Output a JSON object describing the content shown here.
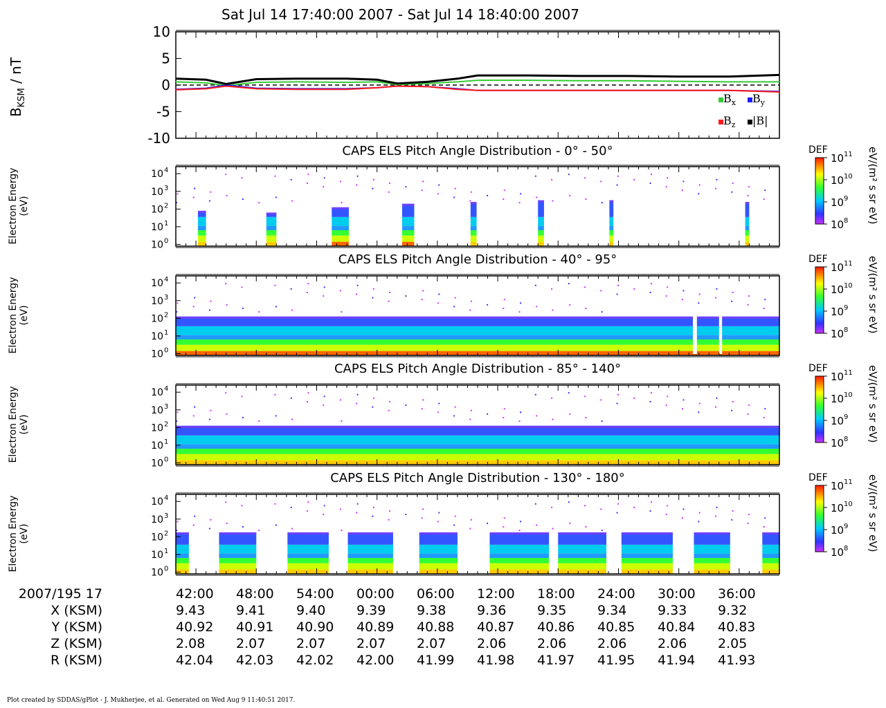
{
  "header": {
    "title": "Sat Jul 14 17:40:00 2007 - Sat Jul 14 18:40:00 2007"
  },
  "mag_panel": {
    "ylabel_main": "B",
    "ylabel_sub": "KSM",
    "ylabel_unit": " / nT",
    "legend": [
      "Bx",
      "By",
      "Bz",
      "|B|"
    ]
  },
  "spec_panels": [
    {
      "title": "CAPS ELS Pitch Angle Distribution - 0° - 50°",
      "ylabel1": "Electron Energy",
      "ylabel2": "(eV)",
      "cbar_title": "DEF",
      "cbar_unit": "eV/(m² s sr eV)"
    },
    {
      "title": "CAPS ELS Pitch Angle Distribution - 40° - 95°",
      "ylabel1": "Electron Energy",
      "ylabel2": "(eV)",
      "cbar_title": "DEF",
      "cbar_unit": "eV/(m² s sr eV)"
    },
    {
      "title": "CAPS ELS Pitch Angle Distribution - 85° - 140°",
      "ylabel1": "Electron Energy",
      "ylabel2": "(eV)",
      "cbar_title": "DEF",
      "cbar_unit": "eV/(m² s sr eV)"
    },
    {
      "title": "CAPS ELS Pitch Angle Distribution - 130° - 180°",
      "ylabel1": "Electron Energy",
      "ylabel2": "(eV)",
      "cbar_title": "DEF",
      "cbar_unit": "eV/(m² s sr eV)"
    }
  ],
  "ephemeris": {
    "rows": [
      {
        "label": "2007/195 17",
        "values": [
          "42:00",
          "48:00",
          "54:00",
          "00:00",
          "06:00",
          "12:00",
          "18:00",
          "24:00",
          "30:00",
          "36:00"
        ]
      },
      {
        "label": "X (KSM)",
        "values": [
          "9.43",
          "9.41",
          "9.40",
          "9.39",
          "9.38",
          "9.36",
          "9.35",
          "9.34",
          "9.33",
          "9.32"
        ]
      },
      {
        "label": "Y (KSM)",
        "values": [
          "40.92",
          "40.91",
          "40.90",
          "40.89",
          "40.88",
          "40.87",
          "40.86",
          "40.85",
          "40.84",
          "40.83"
        ]
      },
      {
        "label": "Z (KSM)",
        "values": [
          "2.08",
          "2.07",
          "2.07",
          "2.07",
          "2.07",
          "2.06",
          "2.06",
          "2.06",
          "2.06",
          "2.05"
        ]
      },
      {
        "label": "R (KSM)",
        "values": [
          "42.04",
          "42.03",
          "42.02",
          "42.00",
          "41.99",
          "41.98",
          "41.97",
          "41.95",
          "41.94",
          "41.93"
        ]
      }
    ]
  },
  "footer": {
    "text": "Plot created by SDDAS/gPlot - J. Mukherjee, et al.  Generated on Wed Aug 9 11:40:51 2017."
  },
  "colors": {
    "bx": "#33cc33",
    "by": "#1a1aff",
    "bz": "#ff1a1a",
    "bmag": "#000000"
  },
  "chart_data": [
    {
      "type": "line",
      "x_unit": "minutes after 17:40 UT",
      "xlim": [
        0,
        60
      ],
      "ylim": [
        -10,
        10
      ],
      "yticks": [
        -10,
        -5,
        0,
        5,
        10
      ],
      "legend_position": "bottom-right",
      "series": [
        {
          "name": "Bx",
          "x": [
            0,
            3,
            5,
            8,
            12,
            17,
            20,
            22,
            25,
            28,
            30,
            35,
            40,
            45,
            50,
            55,
            60
          ],
          "values": [
            0.6,
            0.4,
            -0.1,
            0.5,
            0.6,
            0.5,
            0.6,
            0.1,
            0.3,
            0.6,
            0.9,
            0.9,
            0.8,
            0.8,
            0.7,
            0.6,
            0.6
          ]
        },
        {
          "name": "By",
          "x": [
            0,
            3,
            5,
            8,
            12,
            17,
            20,
            22,
            25,
            28,
            30,
            35,
            40,
            45,
            50,
            55,
            60
          ],
          "values": [
            -0.8,
            -0.6,
            0,
            -0.6,
            -0.7,
            -0.7,
            -0.5,
            -0.2,
            -0.3,
            -0.7,
            -1.0,
            -1.0,
            -1.0,
            -1.0,
            -1.0,
            -1.0,
            -1.2
          ]
        },
        {
          "name": "Bz",
          "x": [
            0,
            3,
            5,
            8,
            12,
            17,
            20,
            22,
            25,
            28,
            30,
            35,
            40,
            45,
            50,
            55,
            60
          ],
          "values": [
            -0.9,
            -0.7,
            -0.2,
            -0.7,
            -0.8,
            -0.8,
            -0.5,
            -0.2,
            -0.3,
            -0.8,
            -1.0,
            -1.0,
            -1.0,
            -1.0,
            -1.0,
            -1.0,
            -1.3
          ]
        },
        {
          "name": "|B|",
          "x": [
            0,
            3,
            5,
            8,
            12,
            17,
            20,
            22,
            25,
            28,
            30,
            35,
            40,
            45,
            50,
            55,
            60
          ],
          "values": [
            1.2,
            1.0,
            0.2,
            1.1,
            1.2,
            1.2,
            1.0,
            0.3,
            0.6,
            1.2,
            1.8,
            1.8,
            1.7,
            1.7,
            1.6,
            1.6,
            1.9
          ]
        }
      ]
    },
    {
      "type": "heatmap",
      "title": "CAPS ELS Pitch Angle Distribution - 0° - 50°",
      "xlim": [
        0,
        60
      ],
      "ylim_log10": [
        -0.1,
        4.4
      ],
      "yticks": [
        "10⁰",
        "10¹",
        "10²",
        "10³",
        "10⁴"
      ],
      "colorbar_range_log10": [
        8,
        11
      ],
      "columns": [
        {
          "x": [
            2.2,
            3.0
          ],
          "top_log10": 1.9
        },
        {
          "x": [
            9.0,
            10.0
          ],
          "top_log10": 1.8
        },
        {
          "x": [
            15.5,
            17.2
          ],
          "top_log10": 2.1
        },
        {
          "x": [
            22.5,
            23.7
          ],
          "top_log10": 2.3
        },
        {
          "x": [
            29.3,
            29.9
          ],
          "top_log10": 2.4
        },
        {
          "x": [
            36.0,
            36.6
          ],
          "top_log10": 2.5
        },
        {
          "x": [
            43.1,
            43.5
          ],
          "top_log10": 2.5
        },
        {
          "x": [
            56.6,
            57.0
          ],
          "top_log10": 2.4
        }
      ]
    },
    {
      "type": "heatmap",
      "title": "CAPS ELS Pitch Angle Distribution - 40° - 95°",
      "xlim": [
        0,
        60
      ],
      "ylim_log10": [
        -0.1,
        4.4
      ],
      "yticks": [
        "10⁰",
        "10¹",
        "10²",
        "10³",
        "10⁴"
      ],
      "colorbar_range_log10": [
        8,
        11
      ],
      "gaps": [
        [
          51.4,
          51.8
        ],
        [
          54.0,
          54.3
        ]
      ]
    },
    {
      "type": "heatmap",
      "title": "CAPS ELS Pitch Angle Distribution - 85° - 140°",
      "xlim": [
        0,
        60
      ],
      "ylim_log10": [
        -0.1,
        4.4
      ],
      "yticks": [
        "10⁰",
        "10¹",
        "10²",
        "10³",
        "10⁴"
      ],
      "colorbar_range_log10": [
        8,
        11
      ],
      "gaps": []
    },
    {
      "type": "heatmap",
      "title": "CAPS ELS Pitch Angle Distribution - 130° - 180°",
      "xlim": [
        0,
        60
      ],
      "ylim_log10": [
        -0.1,
        4.4
      ],
      "yticks": [
        "10⁰",
        "10¹",
        "10²",
        "10³",
        "10⁴"
      ],
      "colorbar_range_log10": [
        8,
        11
      ],
      "data_blocks": [
        [
          0,
          1.3
        ],
        [
          4.3,
          8.0
        ],
        [
          11.1,
          15.2
        ],
        [
          17.1,
          21.6
        ],
        [
          24.2,
          28.0
        ],
        [
          31.2,
          37.1
        ],
        [
          38.0,
          42.8
        ],
        [
          44.3,
          49.4
        ],
        [
          51.5,
          55.1
        ],
        [
          58.3,
          60
        ]
      ]
    }
  ]
}
